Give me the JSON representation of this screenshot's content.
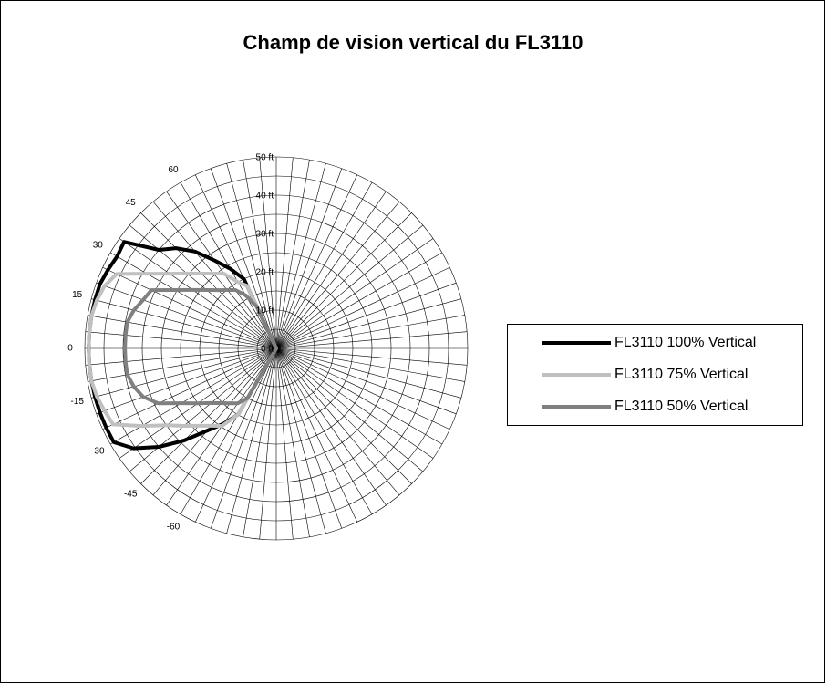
{
  "chart_data": {
    "type": "radar",
    "title": "Champ de vision vertical du FL3110",
    "categories": [
      null,
      null,
      null,
      null,
      null,
      null,
      null,
      null,
      null,
      null,
      null,
      null,
      null,
      null,
      null,
      null,
      null,
      null,
      null,
      null,
      null,
      null,
      null,
      null,
      null,
      null,
      null,
      null,
      null,
      null,
      null,
      null,
      null,
      null,
      null,
      null,
      null,
      null,
      null,
      null,
      null,
      null,
      "-60",
      null,
      null,
      "-45",
      null,
      null,
      "-30",
      null,
      null,
      "-15",
      null,
      null,
      "0",
      null,
      null,
      "15",
      null,
      null,
      "30",
      null,
      null,
      "45",
      null,
      null,
      "60",
      null,
      null,
      null,
      null,
      null
    ],
    "series": [
      {
        "name": "FL3110 100% Vertical",
        "color": "#000000",
        "values": [
          0,
          0,
          0,
          0,
          0,
          0,
          0,
          0,
          0,
          0,
          0,
          0,
          0,
          0,
          0,
          0,
          0,
          0,
          0,
          0,
          0,
          0,
          0,
          0,
          0,
          0,
          0,
          0,
          0,
          0,
          0,
          0,
          0,
          0,
          0,
          0,
          0,
          0,
          0,
          0,
          0,
          0,
          20,
          24,
          28,
          34,
          40,
          45.5,
          49,
          49,
          49,
          49,
          49,
          49,
          49,
          49,
          49,
          49,
          49,
          48.5,
          48,
          48.5,
          40,
          37,
          33,
          28,
          24,
          20,
          0,
          0,
          0,
          0
        ]
      },
      {
        "name": "FL3110 75% Vertical",
        "color": "#c0c0c0",
        "values": [
          0,
          0,
          0,
          0,
          0,
          0,
          0,
          0,
          0,
          0,
          0,
          0,
          0,
          0,
          0,
          0,
          0,
          0,
          0,
          0,
          0,
          0,
          0,
          0,
          0,
          0,
          0,
          0,
          0,
          0,
          0,
          0,
          0,
          0,
          0,
          0,
          0,
          0,
          0,
          0,
          0,
          0,
          20,
          24.7,
          26.4,
          28.6,
          31.5,
          35,
          40.5,
          47,
          47.7,
          48.5,
          49,
          49,
          49,
          49,
          49,
          48.5,
          47.7,
          46,
          39,
          34,
          30.4,
          27.6,
          25.5,
          23.8,
          20,
          18,
          0,
          0,
          0,
          0
        ]
      },
      {
        "name": "FL3110 50% Vertical",
        "color": "#808080",
        "values": [
          0,
          0,
          0,
          0,
          0,
          0,
          0,
          0,
          0,
          0,
          0,
          0,
          0,
          0,
          0,
          0,
          0,
          0,
          0,
          0,
          0,
          0,
          0,
          0,
          0,
          0,
          0,
          0,
          0,
          0,
          0,
          0,
          0,
          0,
          0,
          0,
          0,
          0,
          0,
          0,
          0,
          0,
          15,
          17.5,
          18.7,
          20.2,
          22.2,
          25,
          28.6,
          34,
          37,
          38.5,
          39.5,
          39.5,
          39.5,
          39.5,
          39.5,
          38.5,
          37,
          36,
          30.5,
          26.6,
          23.7,
          21.5,
          19.9,
          18.6,
          16,
          12,
          0,
          0,
          0,
          0
        ]
      }
    ],
    "ylim": [
      0,
      50
    ],
    "yticks": [
      {
        "value": 0,
        "label": "0 ft"
      },
      {
        "value": 10,
        "label": "10 ft"
      },
      {
        "value": 20,
        "label": "20 ft"
      },
      {
        "value": 30,
        "label": "30 ft"
      },
      {
        "value": 40,
        "label": "40 ft"
      },
      {
        "value": 50,
        "label": "50 ft"
      }
    ],
    "minor_yticks": [
      5,
      15,
      25,
      35,
      45
    ],
    "grid": true,
    "legend": "right"
  }
}
